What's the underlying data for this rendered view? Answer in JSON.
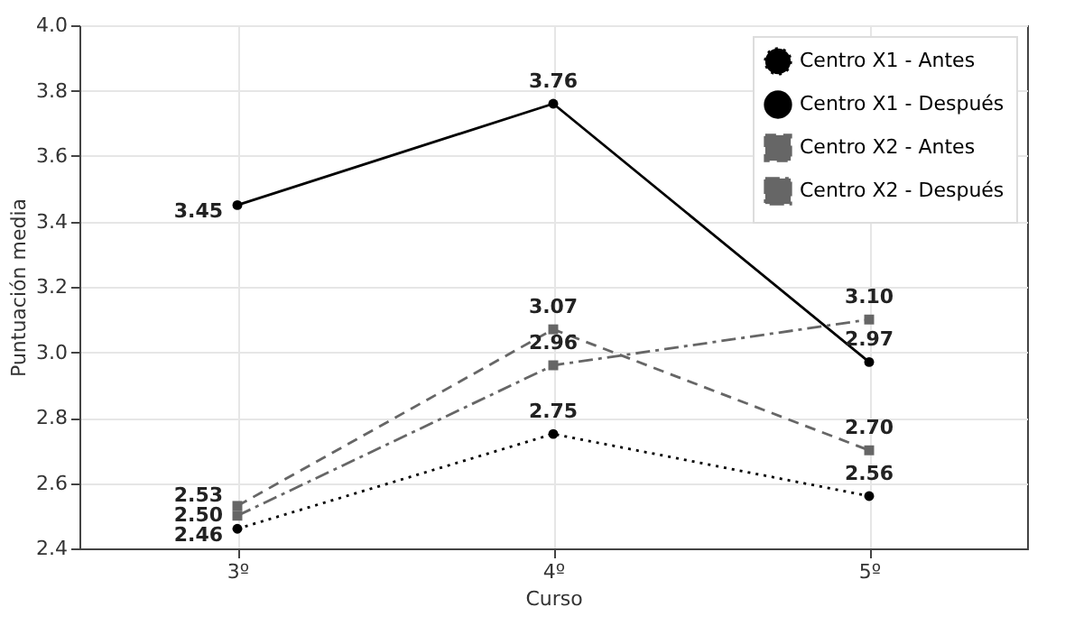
{
  "chart_data": {
    "type": "line",
    "xlabel": "Curso",
    "ylabel": "Puntuación media",
    "categories": [
      "3º",
      "4º",
      "5º"
    ],
    "series": [
      {
        "name": "Centro X1 - Antes",
        "color": "#000000",
        "marker": "circle",
        "line_style": "dotted",
        "values": [
          2.46,
          2.75,
          2.56
        ],
        "value_labels": [
          "2.46",
          "2.75",
          "2.56"
        ]
      },
      {
        "name": "Centro X1 - Después",
        "color": "#000000",
        "marker": "circle",
        "line_style": "solid",
        "values": [
          3.45,
          3.76,
          2.97
        ],
        "value_labels": [
          "3.45",
          "3.76",
          "2.97"
        ]
      },
      {
        "name": "Centro X2 - Antes",
        "color": "#666666",
        "marker": "square",
        "line_style": "dashed",
        "values": [
          2.53,
          3.07,
          2.7
        ],
        "value_labels": [
          "2.53",
          "3.07",
          "2.70"
        ]
      },
      {
        "name": "Centro X2 - Después",
        "color": "#666666",
        "marker": "square",
        "line_style": "dashdot",
        "values": [
          2.5,
          2.96,
          3.1
        ],
        "value_labels": [
          "2.50",
          "2.96",
          "3.10"
        ]
      }
    ],
    "ylim": [
      2.4,
      4.0
    ],
    "yticks": [
      2.4,
      2.6,
      2.8,
      {
        "value": 3.0,
        "label": "3.0"
      },
      3.2,
      3.4,
      3.6,
      3.8,
      {
        "value": 4.0,
        "label": "4.0"
      }
    ],
    "grid": true,
    "legend": "top right"
  }
}
